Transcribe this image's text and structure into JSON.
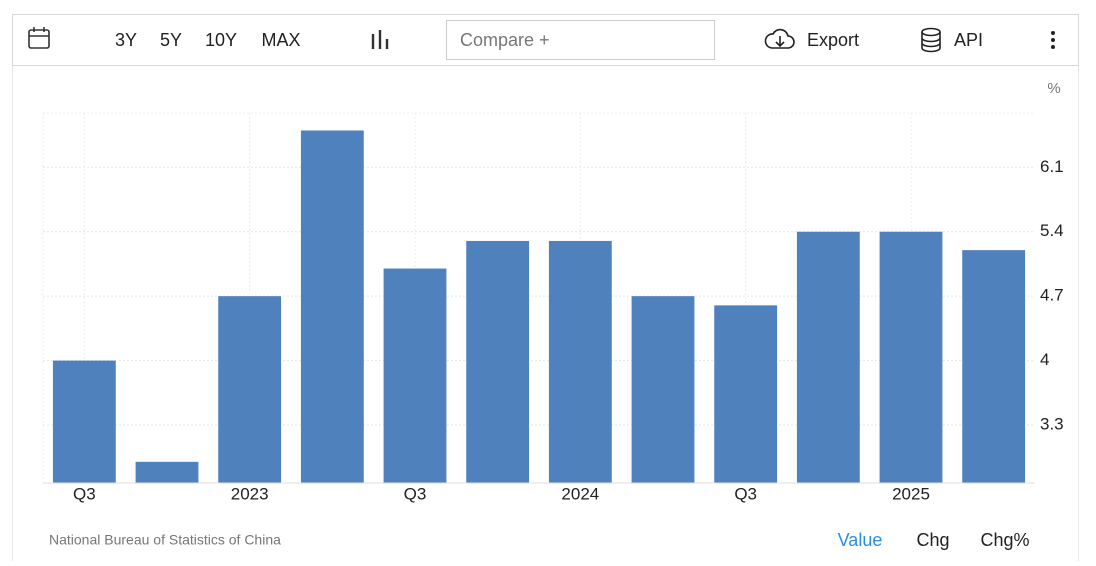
{
  "toolbar": {
    "ranges": [
      "3Y",
      "5Y",
      "10Y",
      "MAX"
    ],
    "compare": "Compare +",
    "export": "Export",
    "api": "API"
  },
  "chart_data": {
    "type": "bar",
    "unit": "%",
    "color": "#4f81bd",
    "categories": [
      "Q3",
      null,
      "2023",
      null,
      "Q3",
      null,
      "2024",
      null,
      "Q3",
      null,
      "2025",
      null
    ],
    "values": [
      4.0,
      2.9,
      4.7,
      6.5,
      5.0,
      5.3,
      5.3,
      4.7,
      4.6,
      5.4,
      5.4,
      5.2
    ],
    "ylim": [
      2.67,
      6.69
    ],
    "yticks": [
      3.3,
      4.0,
      4.7,
      5.4,
      6.1
    ],
    "grid": true
  },
  "footer": {
    "source": "National Bureau of Statistics of China",
    "tabs": [
      "Value",
      "Chg",
      "Chg%"
    ]
  }
}
